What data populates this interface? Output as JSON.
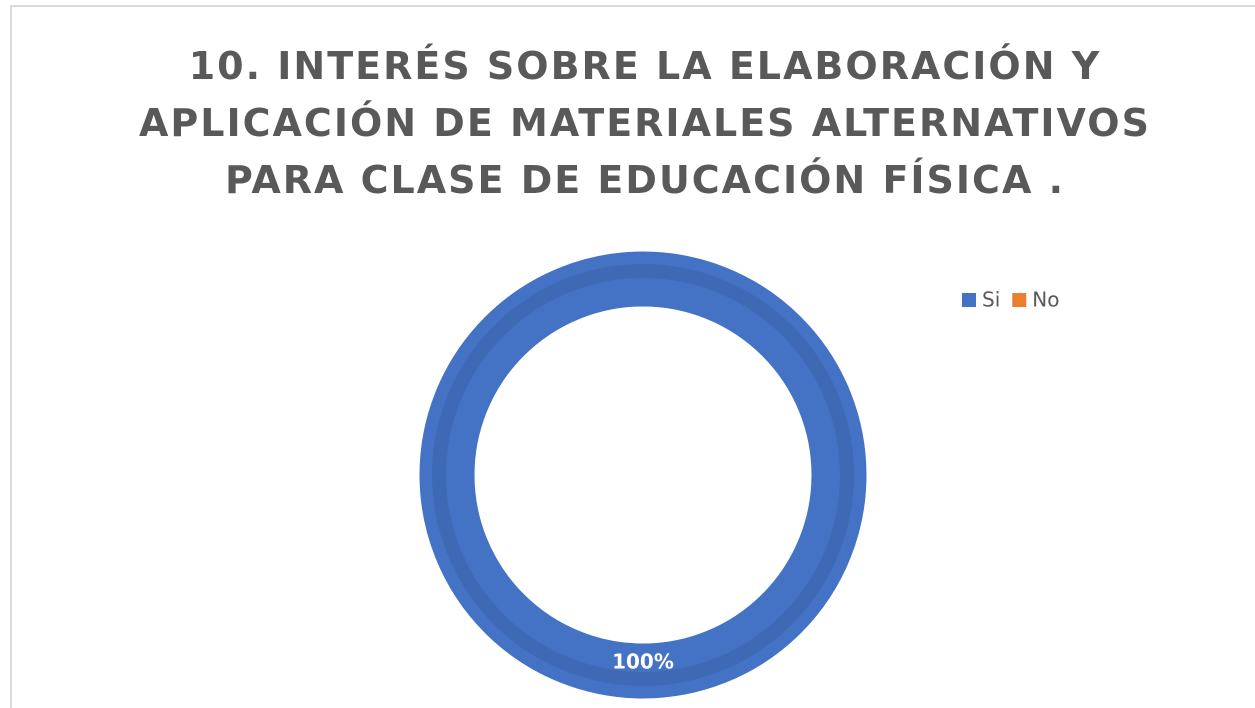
{
  "chart_data": {
    "type": "donut",
    "title": "10. INTERÉS SOBRE LA ELABORACIÓN Y APLICACIÓN DE MATERIALES ALTERNATIVOS PARA CLASE DE EDUCACIÓN FÍSICA .",
    "categories": [
      "Si",
      "No"
    ],
    "values": [
      100,
      0
    ],
    "value_labels": [
      "100%",
      null
    ],
    "colors": [
      "#4472c4",
      "#ed7d31"
    ],
    "legend": "top-right"
  }
}
